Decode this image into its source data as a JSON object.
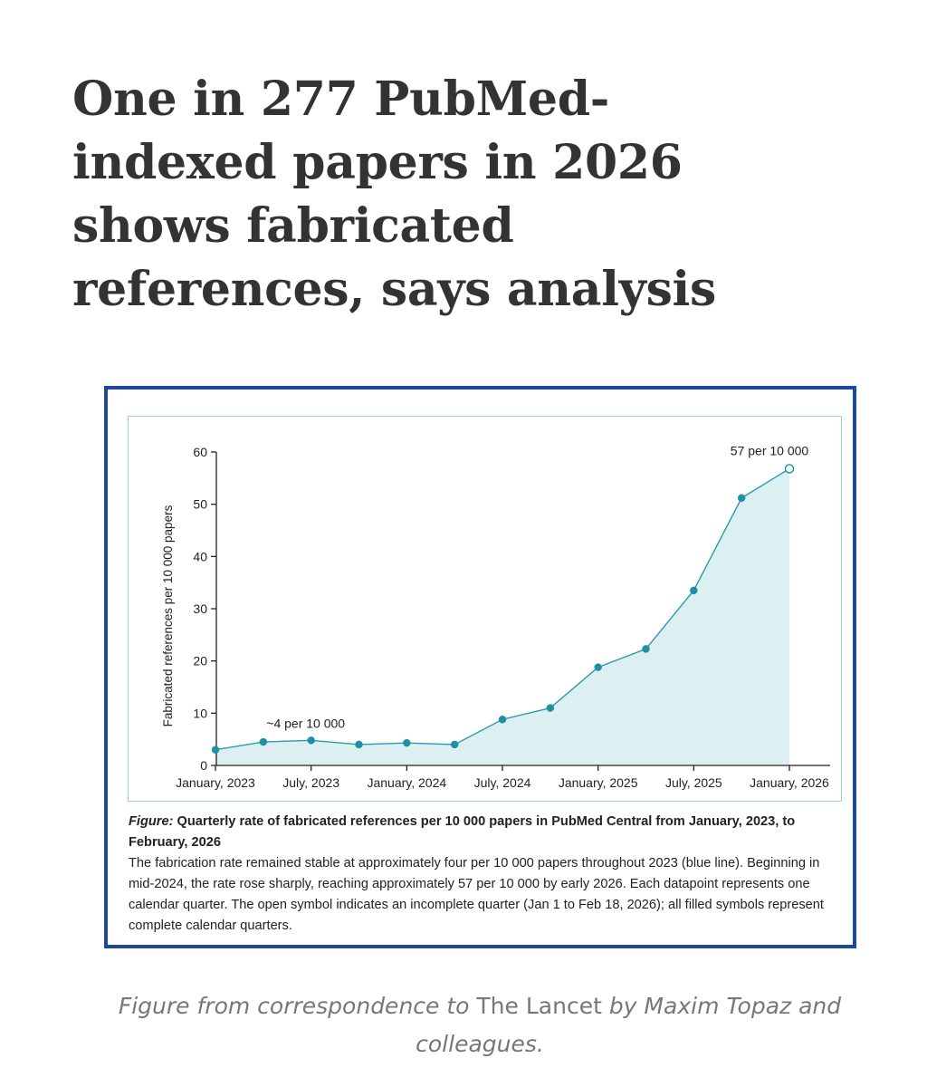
{
  "article": {
    "headline_lines": [
      "One in 277 PubMed-",
      "indexed papers in 2026",
      "shows fabricated",
      "references, says analysis"
    ]
  },
  "figure": {
    "caption_label": "Figure:",
    "caption_title": " Quarterly rate of fabricated references per 10 000 papers in PubMed Central from January, 2023, to February, 2026",
    "caption_text": "The fabrication rate remained stable at approximately four per 10 000 papers throughout 2023 (blue line). Beginning in mid-2024, the rate rose sharply, reaching approximately 57 per 10 000 by early 2026. Each datapoint represents one calendar quarter. The open symbol indicates an incomplete quarter (Jan 1 to Feb 18, 2026); all filled symbols represent complete calendar quarters."
  },
  "source": {
    "prefix": "Figure from correspondence to ",
    "journal": "The Lancet",
    "suffix": " by Maxim Topaz and colleagues."
  },
  "colors": {
    "frame_border": "#1e47a0",
    "line": "#2a9aad",
    "fill": "#dcf0f2",
    "marker": "#1f8fa3"
  },
  "chart_data": {
    "type": "line",
    "title": "",
    "xlabel": "",
    "ylabel": "Fabricated references per 10 000 papers",
    "xtick_labels": [
      "January, 2023",
      "July, 2023",
      "January, 2024",
      "July, 2024",
      "January, 2025",
      "July, 2025",
      "January, 2026"
    ],
    "yticks": [
      0,
      10,
      20,
      30,
      40,
      50,
      60
    ],
    "ylim": [
      0,
      60
    ],
    "grid": false,
    "area_fill": true,
    "series": [
      {
        "x": [
          "2023-01",
          "2023-04",
          "2023-07",
          "2023-10",
          "2024-01",
          "2024-04",
          "2024-07",
          "2024-10",
          "2025-01",
          "2025-04",
          "2025-07",
          "2025-10",
          "2026-01"
        ],
        "values": [
          3.0,
          4.5,
          4.8,
          4.0,
          4.3,
          4.0,
          8.8,
          11.0,
          18.8,
          22.3,
          33.5,
          51.2,
          56.8
        ],
        "open_marker_last": true
      }
    ],
    "annotations": [
      {
        "text": "~4 per 10 000",
        "x": "2023-07",
        "y": 4.8
      },
      {
        "text": "57 per 10 000",
        "x": "2026-01",
        "y": 56.8
      }
    ]
  }
}
